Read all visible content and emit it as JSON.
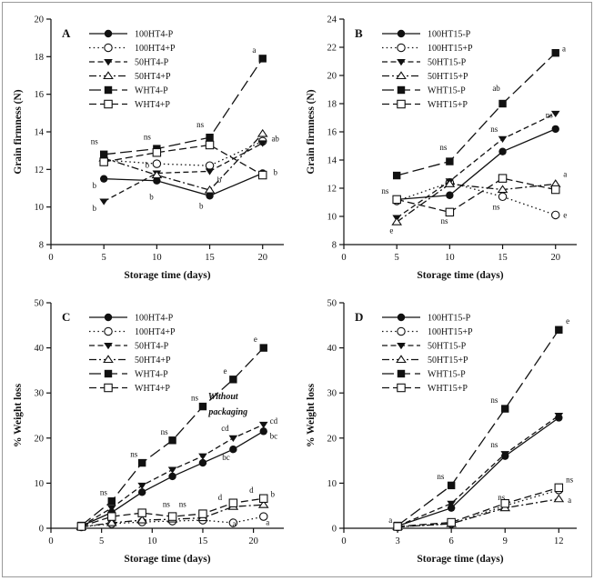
{
  "figure": {
    "background": "#ffffff",
    "border_color": "#9a9a9a",
    "line_color": "#111111"
  },
  "chart_data": [
    {
      "type": "line",
      "panel_label": "A",
      "xlabel": "Storage time (days)",
      "ylabel": "Grain firmness (N)",
      "xlim": [
        0,
        22
      ],
      "xticks": [
        0,
        5,
        10,
        15,
        20
      ],
      "ylim": [
        8,
        20
      ],
      "yticks": [
        8,
        10,
        12,
        14,
        16,
        18,
        20
      ],
      "legend_position": "upper-left",
      "series": [
        {
          "name": "100HT4-P",
          "marker": "circle-filled",
          "dash": "solid",
          "x": [
            5,
            10,
            15,
            20
          ],
          "y": [
            11.5,
            11.4,
            10.6,
            11.8
          ]
        },
        {
          "name": "100HT4+P",
          "marker": "circle-open",
          "dash": "dotted",
          "x": [
            5,
            10,
            15,
            20
          ],
          "y": [
            12.5,
            12.3,
            12.2,
            13.5
          ]
        },
        {
          "name": "50HT4-P",
          "marker": "triangle-down-filled",
          "dash": "dashed",
          "x": [
            5,
            10,
            15,
            20
          ],
          "y": [
            10.3,
            11.8,
            11.9,
            13.4
          ]
        },
        {
          "name": "50HT4+P",
          "marker": "triangle-up-open",
          "dash": "dash-dot",
          "x": [
            5,
            10,
            15,
            20
          ],
          "y": [
            12.6,
            11.7,
            10.9,
            13.9
          ]
        },
        {
          "name": "WHT4-P",
          "marker": "square-filled",
          "dash": "long-dash",
          "x": [
            5,
            10,
            15,
            20
          ],
          "y": [
            12.8,
            13.1,
            13.7,
            17.9
          ]
        },
        {
          "name": "WHT4+P",
          "marker": "square-open",
          "dash": "medium-dash",
          "x": [
            5,
            10,
            15,
            20
          ],
          "y": [
            12.4,
            12.9,
            13.3,
            11.7
          ]
        }
      ],
      "annotations": [
        {
          "x": 4.1,
          "y": 13.35,
          "text": "ns"
        },
        {
          "x": 4.1,
          "y": 11.0,
          "text": "b"
        },
        {
          "x": 4.1,
          "y": 9.8,
          "text": "b"
        },
        {
          "x": 9.1,
          "y": 13.6,
          "text": "ns"
        },
        {
          "x": 9.1,
          "y": 12.1,
          "text": "b"
        },
        {
          "x": 9.5,
          "y": 10.4,
          "text": "b"
        },
        {
          "x": 14.1,
          "y": 14.25,
          "text": "ns"
        },
        {
          "x": 14.2,
          "y": 9.9,
          "text": "b"
        },
        {
          "x": 15.9,
          "y": 11.3,
          "text": "b"
        },
        {
          "x": 19.2,
          "y": 18.2,
          "text": "a"
        },
        {
          "x": 21.2,
          "y": 13.5,
          "text": "ab"
        },
        {
          "x": 21.2,
          "y": 11.7,
          "text": "b"
        }
      ]
    },
    {
      "type": "line",
      "panel_label": "B",
      "xlabel": "Storage time (days)",
      "ylabel": "Grain firmness (N)",
      "xlim": [
        0,
        22
      ],
      "xticks": [
        0,
        5,
        10,
        15,
        20
      ],
      "ylim": [
        8,
        24
      ],
      "yticks": [
        8,
        10,
        12,
        14,
        16,
        18,
        20,
        22,
        24
      ],
      "legend_position": "upper-left",
      "series": [
        {
          "name": "100HT15-P",
          "marker": "circle-filled",
          "dash": "solid",
          "x": [
            5,
            10,
            15,
            20
          ],
          "y": [
            11.2,
            11.5,
            14.6,
            16.2
          ]
        },
        {
          "name": "100HT15+P",
          "marker": "circle-open",
          "dash": "dotted",
          "x": [
            5,
            10,
            15,
            20
          ],
          "y": [
            11.1,
            12.4,
            11.4,
            10.1
          ]
        },
        {
          "name": "50HT15-P",
          "marker": "triangle-down-filled",
          "dash": "dashed",
          "x": [
            5,
            10,
            15,
            20
          ],
          "y": [
            9.9,
            12.5,
            15.5,
            17.3
          ]
        },
        {
          "name": "50HT15+P",
          "marker": "triangle-up-open",
          "dash": "dash-dot",
          "x": [
            5,
            10,
            15,
            20
          ],
          "y": [
            9.6,
            12.3,
            11.9,
            12.3
          ]
        },
        {
          "name": "WHT15-P",
          "marker": "square-filled",
          "dash": "long-dash",
          "x": [
            5,
            10,
            15,
            20
          ],
          "y": [
            12.9,
            13.9,
            18.0,
            21.6
          ]
        },
        {
          "name": "WHT15+P",
          "marker": "square-open",
          "dash": "medium-dash",
          "x": [
            5,
            10,
            15,
            20
          ],
          "y": [
            11.2,
            10.3,
            12.7,
            11.9
          ]
        }
      ],
      "annotations": [
        {
          "x": 3.9,
          "y": 11.6,
          "text": "ns"
        },
        {
          "x": 4.5,
          "y": 8.8,
          "text": "e"
        },
        {
          "x": 9.4,
          "y": 14.7,
          "text": "ns"
        },
        {
          "x": 9.5,
          "y": 9.5,
          "text": "ns"
        },
        {
          "x": 14.4,
          "y": 18.9,
          "text": "ab"
        },
        {
          "x": 14.2,
          "y": 16.0,
          "text": "ns"
        },
        {
          "x": 14.4,
          "y": 10.5,
          "text": "ns"
        },
        {
          "x": 20.8,
          "y": 21.7,
          "text": "a"
        },
        {
          "x": 19.4,
          "y": 17.0,
          "text": "ns"
        },
        {
          "x": 20.9,
          "y": 12.8,
          "text": "a"
        },
        {
          "x": 20.9,
          "y": 9.9,
          "text": "e"
        }
      ]
    },
    {
      "type": "line",
      "panel_label": "C",
      "xlabel": "Storage time (days)",
      "ylabel": "% Weight loss",
      "xlim": [
        0,
        23
      ],
      "xticks": [
        0,
        5,
        10,
        15,
        20
      ],
      "ylim": [
        0,
        50
      ],
      "yticks": [
        0,
        10,
        20,
        30,
        40,
        50
      ],
      "legend_position": "upper-left",
      "series": [
        {
          "name": "100HT4-P",
          "marker": "circle-filled",
          "dash": "solid",
          "x": [
            3,
            6,
            9,
            12,
            15,
            18,
            21
          ],
          "y": [
            0.5,
            3.5,
            8.0,
            11.5,
            14.5,
            17.5,
            21.5
          ]
        },
        {
          "name": "100HT4+P",
          "marker": "circle-open",
          "dash": "dotted",
          "x": [
            3,
            6,
            9,
            12,
            15,
            18,
            21
          ],
          "y": [
            0.3,
            1.0,
            1.4,
            1.6,
            1.8,
            1.2,
            2.6
          ]
        },
        {
          "name": "50HT4-P",
          "marker": "triangle-down-filled",
          "dash": "dashed",
          "x": [
            3,
            6,
            9,
            12,
            15,
            18,
            21
          ],
          "y": [
            0.5,
            4.5,
            9.5,
            13.0,
            16.0,
            20.0,
            23.0
          ]
        },
        {
          "name": "50HT4+P",
          "marker": "triangle-up-open",
          "dash": "dash-dot",
          "x": [
            3,
            6,
            9,
            12,
            15,
            18,
            21
          ],
          "y": [
            0.3,
            1.2,
            1.8,
            2.0,
            2.3,
            4.8,
            5.2
          ]
        },
        {
          "name": "WHT4-P",
          "marker": "square-filled",
          "dash": "long-dash",
          "x": [
            3,
            6,
            9,
            12,
            15,
            18,
            21
          ],
          "y": [
            0.6,
            6.0,
            14.5,
            19.5,
            27.0,
            33.0,
            40.0
          ]
        },
        {
          "name": "WHT4+P",
          "marker": "square-open",
          "dash": "medium-dash",
          "x": [
            3,
            6,
            9,
            12,
            15,
            18,
            21
          ],
          "y": [
            0.4,
            2.6,
            3.4,
            2.6,
            3.2,
            5.6,
            6.6
          ]
        }
      ],
      "annotations": [
        {
          "x": 5.2,
          "y": 7.4,
          "text": "ns"
        },
        {
          "x": 8.2,
          "y": 15.8,
          "text": "ns"
        },
        {
          "x": 11.2,
          "y": 20.8,
          "text": "ns"
        },
        {
          "x": 14.2,
          "y": 28.3,
          "text": "ns"
        },
        {
          "x": 17.2,
          "y": 34.3,
          "text": "e"
        },
        {
          "x": 20.2,
          "y": 41.3,
          "text": "e"
        },
        {
          "x": 17.2,
          "y": 21.6,
          "text": "cd"
        },
        {
          "x": 17.3,
          "y": 15.1,
          "text": "bc"
        },
        {
          "x": 22.0,
          "y": 23.2,
          "text": "cd"
        },
        {
          "x": 22.0,
          "y": 19.9,
          "text": "bc"
        },
        {
          "x": 11.4,
          "y": 4.7,
          "text": "ns"
        },
        {
          "x": 13.0,
          "y": 4.7,
          "text": "ns"
        },
        {
          "x": 16.7,
          "y": 6.3,
          "text": "d"
        },
        {
          "x": 19.8,
          "y": 7.9,
          "text": "d"
        },
        {
          "x": 21.9,
          "y": 7.0,
          "text": "b"
        },
        {
          "x": 18.1,
          "y": 0.4,
          "text": "a"
        },
        {
          "x": 21.4,
          "y": 0.7,
          "text": "a"
        },
        {
          "x": 17.0,
          "y": 28.6,
          "text": "Without",
          "italic": true
        },
        {
          "x": 17.5,
          "y": 25.2,
          "text": "packaging",
          "italic": true
        }
      ]
    },
    {
      "type": "line",
      "panel_label": "D",
      "xlabel": "Storage time (days)",
      "ylabel": "% Weight loss",
      "xlim": [
        0,
        13
      ],
      "xticks": [
        0,
        3,
        6,
        9,
        12
      ],
      "ylim": [
        0,
        50
      ],
      "yticks": [
        0,
        10,
        20,
        30,
        40,
        50
      ],
      "legend_position": "upper-left",
      "series": [
        {
          "name": "100HT15-P",
          "marker": "circle-filled",
          "dash": "solid",
          "x": [
            3,
            6,
            9,
            12
          ],
          "y": [
            0.5,
            4.5,
            16.0,
            24.5
          ]
        },
        {
          "name": "100HT15+P",
          "marker": "circle-open",
          "dash": "dotted",
          "x": [
            3,
            6,
            9,
            12
          ],
          "y": [
            0.3,
            1.0,
            5.0,
            8.5
          ]
        },
        {
          "name": "50HT15-P",
          "marker": "triangle-down-filled",
          "dash": "dashed",
          "x": [
            3,
            6,
            9,
            12
          ],
          "y": [
            0.5,
            5.5,
            16.5,
            25.0
          ]
        },
        {
          "name": "50HT15+P",
          "marker": "triangle-up-open",
          "dash": "dash-dot",
          "x": [
            3,
            6,
            9,
            12
          ],
          "y": [
            0.3,
            1.0,
            4.5,
            6.5
          ]
        },
        {
          "name": "WHT15-P",
          "marker": "square-filled",
          "dash": "long-dash",
          "x": [
            3,
            6,
            9,
            12
          ],
          "y": [
            0.6,
            9.5,
            26.5,
            44.0
          ]
        },
        {
          "name": "WHT15+P",
          "marker": "square-open",
          "dash": "medium-dash",
          "x": [
            3,
            6,
            9,
            12
          ],
          "y": [
            0.4,
            1.3,
            5.5,
            9.0
          ]
        }
      ],
      "annotations": [
        {
          "x": 5.4,
          "y": 10.9,
          "text": "ns"
        },
        {
          "x": 8.4,
          "y": 27.8,
          "text": "ns"
        },
        {
          "x": 8.4,
          "y": 17.9,
          "text": "ns"
        },
        {
          "x": 12.5,
          "y": 45.4,
          "text": "e"
        },
        {
          "x": 8.8,
          "y": 6.3,
          "text": "ns"
        },
        {
          "x": 12.6,
          "y": 10.2,
          "text": "ns"
        },
        {
          "x": 12.6,
          "y": 5.6,
          "text": "a"
        },
        {
          "x": 2.6,
          "y": 1.2,
          "text": "a"
        }
      ]
    }
  ]
}
